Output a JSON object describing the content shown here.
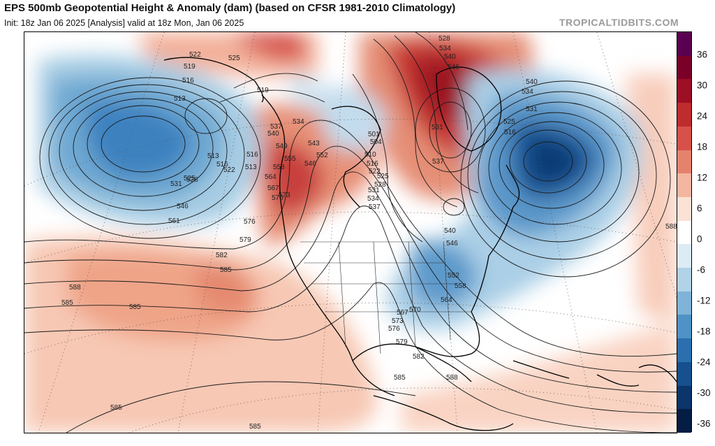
{
  "header": {
    "title": "EPS 500mb Geopotential Height & Anomaly (dam) (based on CFSR 1981-2010 Climatology)",
    "subtitle": "Init: 18z Jan 06 2025   [Analysis]   valid at 18z Mon, Jan 06 2025",
    "brand": "TROPICALTIDBITS.COM"
  },
  "colorbar": {
    "ticks": [
      "36",
      "30",
      "24",
      "18",
      "12",
      "6",
      "0",
      "-6",
      "-12",
      "-18",
      "-24",
      "-30",
      "-36"
    ],
    "colors": [
      "#5a0050",
      "#7a0028",
      "#9c0f24",
      "#bf2c2e",
      "#d6514a",
      "#e4826e",
      "#f3b6a0",
      "#fbe2d6",
      "#ffffff",
      "#dcecf5",
      "#b0d3e8",
      "#7fb4d8",
      "#4f93c6",
      "#2b6fae",
      "#16508e",
      "#0b356b",
      "#051c45"
    ]
  },
  "map": {
    "contour_labels": [
      "522",
      "519",
      "516",
      "513",
      "525",
      "519",
      "516",
      "513",
      "513",
      "516",
      "522",
      "525",
      "528",
      "531",
      "546",
      "561",
      "576",
      "579",
      "582",
      "585",
      "588",
      "585",
      "585",
      "585",
      "537",
      "534",
      "540",
      "543",
      "546",
      "549",
      "552",
      "555",
      "558",
      "564",
      "567",
      "570",
      "573",
      "501",
      "504",
      "510",
      "516",
      "522",
      "525",
      "528",
      "531",
      "534",
      "537",
      "528",
      "534",
      "540",
      "546",
      "531",
      "537",
      "540",
      "546",
      "552",
      "558",
      "564",
      "567",
      "570",
      "573",
      "576",
      "579",
      "582",
      "585",
      "588",
      "540",
      "534",
      "531",
      "525",
      "516",
      "588",
      "585"
    ]
  }
}
